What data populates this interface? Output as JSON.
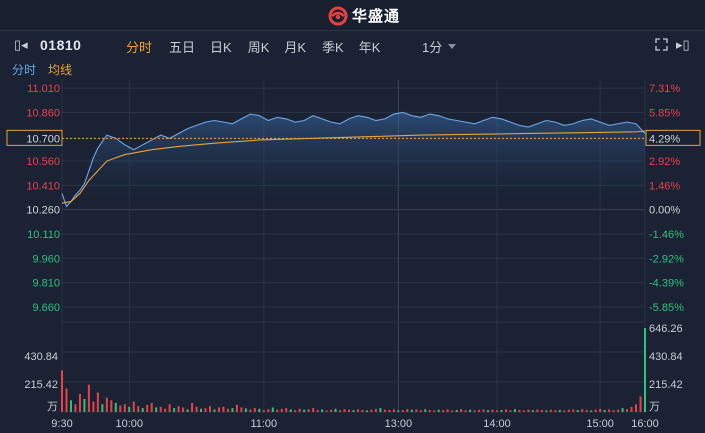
{
  "header": {
    "brand": "华盛通"
  },
  "toolbar": {
    "stock_code": "01810",
    "tabs": [
      "分时",
      "五日",
      "日K",
      "周K",
      "月K",
      "季K",
      "年K"
    ],
    "active_tab": 0,
    "interval": "1分",
    "icons": [
      "collapse-icon",
      "expand-icon",
      "close-panel-icon"
    ]
  },
  "legend": {
    "time_label": "分时",
    "avg_label": "均线"
  },
  "colors": {
    "up": "#e8414a",
    "down": "#2ec27e",
    "price": "#6aa8e8",
    "avg": "#e8a33a",
    "grid": "#2a3446",
    "bg": "#1a2233"
  },
  "chart_data": {
    "type": "line",
    "price_ticks": [
      "11.010",
      "10.860",
      "10.700",
      "10.560",
      "10.410",
      "10.260",
      "10.110",
      "9.960",
      "9.810",
      "9.660"
    ],
    "pct_ticks": [
      "7.31%",
      "5.85%",
      "4.29%",
      "2.92%",
      "1.46%",
      "0.00%",
      "-1.46%",
      "-2.92%",
      "-4.39%",
      "-5.85%"
    ],
    "prev_close": 10.26,
    "current_price_label": "10.700",
    "current_pct_label": "4.29%",
    "ylim": [
      9.61,
      11.06
    ],
    "time_ticks": [
      "9:30",
      "10:00",
      "11:00",
      "13:00",
      "14:00",
      "15:00",
      "16:00"
    ],
    "volume_ticks": [
      "646.26",
      "430.84",
      "215.42"
    ],
    "volume_unit": "万",
    "volume_max": 646.26,
    "price_points": [
      [
        0,
        10.36
      ],
      [
        1,
        10.28
      ],
      [
        2,
        10.31
      ],
      [
        3,
        10.35
      ],
      [
        4,
        10.38
      ],
      [
        5,
        10.42
      ],
      [
        6,
        10.5
      ],
      [
        7,
        10.58
      ],
      [
        8,
        10.64
      ],
      [
        9,
        10.68
      ],
      [
        10,
        10.72
      ],
      [
        12,
        10.7
      ],
      [
        14,
        10.66
      ],
      [
        16,
        10.63
      ],
      [
        18,
        10.66
      ],
      [
        20,
        10.69
      ],
      [
        22,
        10.72
      ],
      [
        24,
        10.7
      ],
      [
        26,
        10.73
      ],
      [
        28,
        10.76
      ],
      [
        30,
        10.78
      ],
      [
        32,
        10.8
      ],
      [
        34,
        10.81
      ],
      [
        36,
        10.8
      ],
      [
        38,
        10.79
      ],
      [
        40,
        10.82
      ],
      [
        42,
        10.85
      ],
      [
        44,
        10.84
      ],
      [
        46,
        10.81
      ],
      [
        48,
        10.83
      ],
      [
        50,
        10.82
      ],
      [
        52,
        10.8
      ],
      [
        54,
        10.81
      ],
      [
        56,
        10.84
      ],
      [
        58,
        10.82
      ],
      [
        60,
        10.8
      ],
      [
        62,
        10.79
      ],
      [
        64,
        10.82
      ],
      [
        66,
        10.84
      ],
      [
        68,
        10.83
      ],
      [
        70,
        10.81
      ],
      [
        72,
        10.82
      ],
      [
        74,
        10.85
      ],
      [
        76,
        10.86
      ],
      [
        78,
        10.84
      ],
      [
        80,
        10.83
      ],
      [
        82,
        10.85
      ],
      [
        84,
        10.84
      ],
      [
        86,
        10.82
      ],
      [
        88,
        10.81
      ],
      [
        90,
        10.8
      ],
      [
        92,
        10.79
      ],
      [
        94,
        10.81
      ],
      [
        96,
        10.83
      ],
      [
        98,
        10.82
      ],
      [
        100,
        10.8
      ],
      [
        102,
        10.78
      ],
      [
        104,
        10.77
      ],
      [
        106,
        10.79
      ],
      [
        108,
        10.81
      ],
      [
        110,
        10.8
      ],
      [
        112,
        10.78
      ],
      [
        114,
        10.79
      ],
      [
        116,
        10.81
      ],
      [
        118,
        10.82
      ],
      [
        120,
        10.8
      ],
      [
        122,
        10.78
      ],
      [
        124,
        10.79
      ],
      [
        126,
        10.8
      ],
      [
        128,
        10.79
      ],
      [
        130,
        10.73
      ]
    ],
    "avg_points": [
      [
        0,
        10.3
      ],
      [
        2,
        10.31
      ],
      [
        4,
        10.36
      ],
      [
        6,
        10.44
      ],
      [
        8,
        10.5
      ],
      [
        10,
        10.56
      ],
      [
        14,
        10.6
      ],
      [
        20,
        10.63
      ],
      [
        26,
        10.65
      ],
      [
        34,
        10.67
      ],
      [
        44,
        10.69
      ],
      [
        56,
        10.7
      ],
      [
        68,
        10.71
      ],
      [
        80,
        10.72
      ],
      [
        92,
        10.725
      ],
      [
        104,
        10.73
      ],
      [
        116,
        10.735
      ],
      [
        128,
        10.74
      ],
      [
        130,
        10.745
      ]
    ],
    "volume_bars": [
      [
        0,
        320,
        1
      ],
      [
        1,
        180,
        1
      ],
      [
        2,
        90,
        0
      ],
      [
        3,
        60,
        1
      ],
      [
        4,
        140,
        1
      ],
      [
        5,
        100,
        0
      ],
      [
        6,
        210,
        1
      ],
      [
        7,
        80,
        1
      ],
      [
        8,
        150,
        1
      ],
      [
        9,
        60,
        0
      ],
      [
        10,
        110,
        1
      ],
      [
        11,
        90,
        1
      ],
      [
        12,
        70,
        0
      ],
      [
        13,
        50,
        1
      ],
      [
        14,
        60,
        1
      ],
      [
        15,
        40,
        0
      ],
      [
        16,
        80,
        1
      ],
      [
        17,
        45,
        1
      ],
      [
        18,
        30,
        0
      ],
      [
        19,
        55,
        1
      ],
      [
        20,
        70,
        1
      ],
      [
        21,
        35,
        0
      ],
      [
        22,
        40,
        1
      ],
      [
        23,
        25,
        1
      ],
      [
        24,
        60,
        1
      ],
      [
        25,
        30,
        0
      ],
      [
        26,
        45,
        1
      ],
      [
        27,
        35,
        1
      ],
      [
        28,
        20,
        0
      ],
      [
        29,
        70,
        1
      ],
      [
        30,
        40,
        1
      ],
      [
        31,
        25,
        0
      ],
      [
        32,
        30,
        1
      ],
      [
        33,
        45,
        1
      ],
      [
        34,
        20,
        0
      ],
      [
        35,
        35,
        1
      ],
      [
        36,
        40,
        1
      ],
      [
        37,
        25,
        1
      ],
      [
        38,
        30,
        0
      ],
      [
        39,
        55,
        1
      ],
      [
        40,
        35,
        1
      ],
      [
        41,
        28,
        0
      ],
      [
        42,
        20,
        1
      ],
      [
        43,
        30,
        1
      ],
      [
        44,
        25,
        0
      ],
      [
        45,
        15,
        1
      ],
      [
        46,
        22,
        1
      ],
      [
        47,
        35,
        0
      ],
      [
        48,
        18,
        1
      ],
      [
        49,
        25,
        1
      ],
      [
        50,
        30,
        1
      ],
      [
        51,
        20,
        0
      ],
      [
        52,
        15,
        1
      ],
      [
        53,
        25,
        1
      ],
      [
        54,
        18,
        0
      ],
      [
        55,
        22,
        1
      ],
      [
        56,
        30,
        1
      ],
      [
        57,
        16,
        1
      ],
      [
        58,
        20,
        0
      ],
      [
        59,
        12,
        1
      ],
      [
        60,
        18,
        1
      ],
      [
        61,
        25,
        0
      ],
      [
        62,
        15,
        1
      ],
      [
        63,
        22,
        1
      ],
      [
        64,
        18,
        1
      ],
      [
        65,
        14,
        0
      ],
      [
        66,
        20,
        1
      ],
      [
        67,
        16,
        1
      ],
      [
        68,
        12,
        0
      ],
      [
        69,
        18,
        1
      ],
      [
        70,
        24,
        1
      ],
      [
        71,
        30,
        0
      ],
      [
        72,
        18,
        1
      ],
      [
        73,
        16,
        1
      ],
      [
        74,
        20,
        1
      ],
      [
        75,
        12,
        0
      ],
      [
        76,
        15,
        1
      ],
      [
        77,
        22,
        1
      ],
      [
        78,
        18,
        0
      ],
      [
        79,
        20,
        1
      ],
      [
        80,
        14,
        1
      ],
      [
        81,
        22,
        0
      ],
      [
        82,
        16,
        1
      ],
      [
        83,
        12,
        1
      ],
      [
        84,
        18,
        0
      ],
      [
        85,
        15,
        1
      ],
      [
        86,
        20,
        1
      ],
      [
        87,
        12,
        1
      ],
      [
        88,
        16,
        0
      ],
      [
        89,
        22,
        1
      ],
      [
        90,
        14,
        1
      ],
      [
        91,
        18,
        0
      ],
      [
        92,
        12,
        1
      ],
      [
        93,
        16,
        1
      ],
      [
        94,
        20,
        1
      ],
      [
        95,
        14,
        0
      ],
      [
        96,
        18,
        1
      ],
      [
        97,
        12,
        1
      ],
      [
        98,
        15,
        0
      ],
      [
        99,
        20,
        1
      ],
      [
        100,
        14,
        1
      ],
      [
        101,
        22,
        0
      ],
      [
        102,
        16,
        1
      ],
      [
        103,
        12,
        1
      ],
      [
        104,
        18,
        1
      ],
      [
        105,
        14,
        0
      ],
      [
        106,
        20,
        1
      ],
      [
        107,
        16,
        1
      ],
      [
        108,
        12,
        0
      ],
      [
        109,
        18,
        1
      ],
      [
        110,
        14,
        1
      ],
      [
        111,
        16,
        0
      ],
      [
        112,
        12,
        1
      ],
      [
        113,
        18,
        1
      ],
      [
        114,
        20,
        1
      ],
      [
        115,
        15,
        0
      ],
      [
        116,
        22,
        1
      ],
      [
        117,
        16,
        1
      ],
      [
        118,
        12,
        0
      ],
      [
        119,
        18,
        1
      ],
      [
        120,
        24,
        1
      ],
      [
        121,
        16,
        0
      ],
      [
        122,
        20,
        1
      ],
      [
        123,
        14,
        1
      ],
      [
        124,
        18,
        1
      ],
      [
        125,
        30,
        0
      ],
      [
        126,
        22,
        1
      ],
      [
        127,
        40,
        1
      ],
      [
        128,
        60,
        1
      ],
      [
        129,
        120,
        1
      ],
      [
        130,
        646,
        0
      ]
    ]
  }
}
